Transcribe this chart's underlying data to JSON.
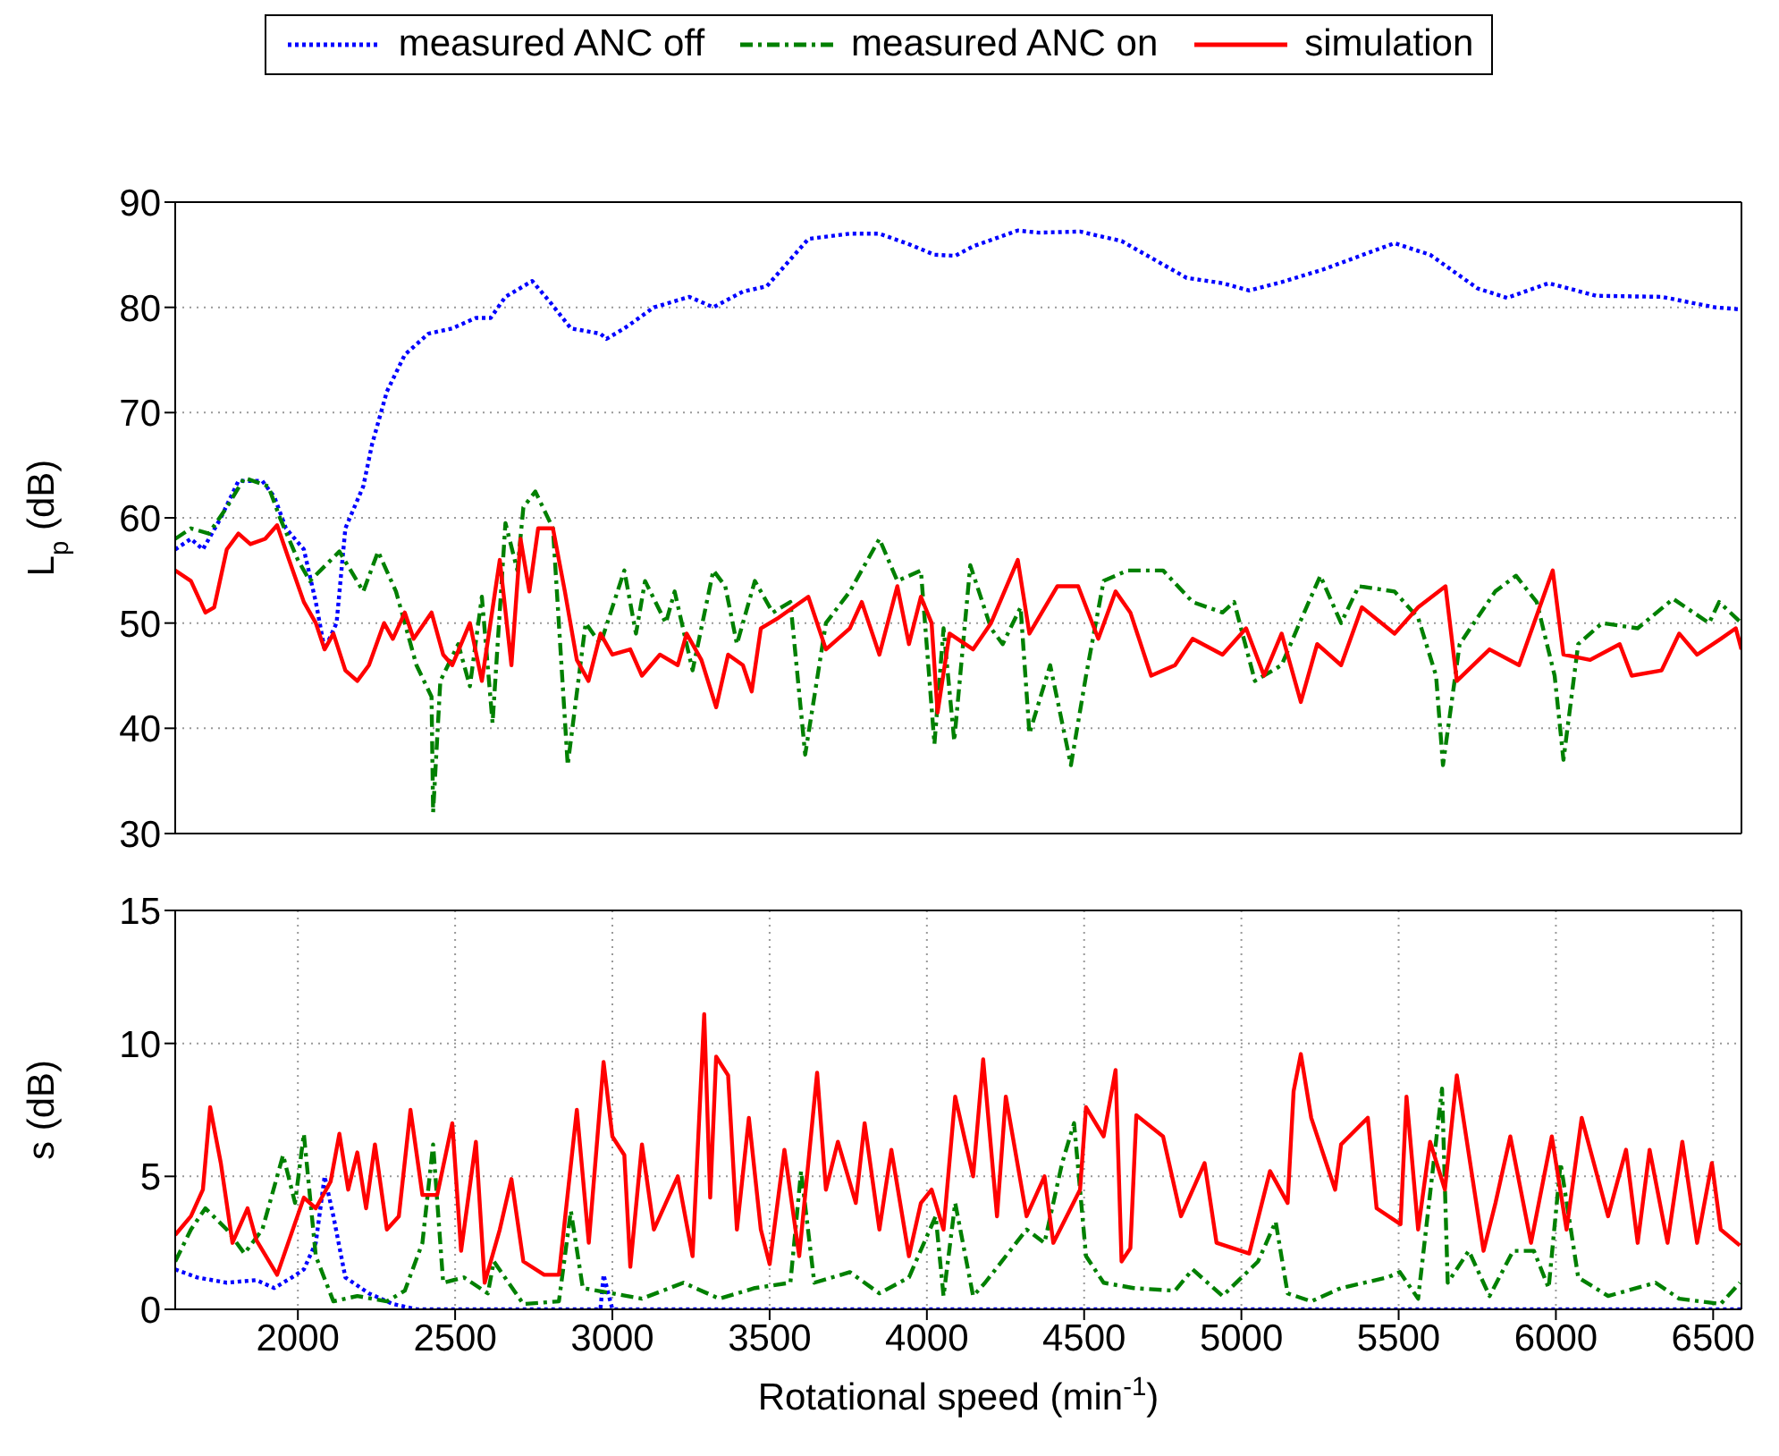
{
  "chart_data": [
    {
      "type": "line",
      "ylabel": "L$_{p}$ (dB)",
      "xlim": [
        1610,
        6590
      ],
      "xticks": [
        2000,
        2500,
        3000,
        3500,
        4000,
        4500,
        5000,
        5500,
        6000,
        6500
      ],
      "ylim": [
        30,
        90
      ],
      "yticks": [
        30,
        40,
        50,
        60,
        70,
        80,
        90
      ],
      "grid": true,
      "legend": "top",
      "tick_labels": "y",
      "series": [
        {
          "name": "measured ANC off",
          "color": "#0000ff",
          "line_style": "dotted",
          "x": [
            1610,
            1660,
            1698,
            1755,
            1811,
            1887,
            1925,
            1962,
            2019,
            2057,
            2085,
            2123,
            2151,
            2208,
            2236,
            2283,
            2340,
            2415,
            2491,
            2566,
            2613,
            2660,
            2745,
            2802,
            2868,
            2962,
            2981,
            3038,
            3132,
            3245,
            3321,
            3415,
            3491,
            3623,
            3755,
            3849,
            3943,
            4024,
            4090,
            4147,
            4289,
            4355,
            4487,
            4619,
            4826,
            4940,
            5025,
            5128,
            5260,
            5487,
            5600,
            5751,
            5845,
            5977,
            6128,
            6336,
            6506,
            6590
          ],
          "values": [
            57,
            58,
            57,
            60,
            63.5,
            63.5,
            62,
            59,
            57,
            52,
            47.5,
            50,
            59,
            63,
            67,
            72,
            75.5,
            77.5,
            78,
            79,
            79,
            81,
            82.5,
            80.5,
            78,
            77.5,
            77,
            78,
            80,
            81,
            80,
            81.5,
            82,
            86.5,
            87,
            87,
            86,
            85,
            84.9,
            85.8,
            87.3,
            87.1,
            87.2,
            86.3,
            82.8,
            82.3,
            81.6,
            82.4,
            83.6,
            86.1,
            85,
            81.8,
            80.9,
            82.3,
            81.1,
            81,
            80,
            79.8
          ]
        },
        {
          "name": "measured ANC on",
          "color": "#008000",
          "line_style": "dashed",
          "x": [
            1610,
            1660,
            1717,
            1774,
            1830,
            1906,
            1943,
            2000,
            2038,
            2132,
            2208,
            2255,
            2312,
            2377,
            2425,
            2430,
            2453,
            2510,
            2547,
            2585,
            2619,
            2660,
            2698,
            2717,
            2755,
            2811,
            2858,
            2915,
            2962,
            3038,
            3075,
            3104,
            3170,
            3198,
            3255,
            3321,
            3359,
            3396,
            3453,
            3510,
            3566,
            3613,
            3679,
            3755,
            3849,
            3906,
            3981,
            4024,
            4053,
            4087,
            4138,
            4204,
            4241,
            4298,
            4326,
            4392,
            4458,
            4506,
            4562,
            4638,
            4751,
            4845,
            4940,
            4977,
            5043,
            5128,
            5185,
            5251,
            5317,
            5373,
            5487,
            5562,
            5619,
            5641,
            5694,
            5807,
            5873,
            5939,
            5996,
            6024,
            6071,
            6147,
            6260,
            6373,
            6487,
            6519,
            6590
          ],
          "values": [
            58,
            59,
            58.5,
            61,
            63.8,
            63,
            60,
            56,
            54,
            56.8,
            53,
            56.8,
            53,
            46,
            43,
            32,
            44.5,
            48,
            44,
            52.5,
            40.5,
            59.5,
            55,
            61,
            62.5,
            59,
            36.5,
            50,
            48,
            55,
            49,
            54,
            50,
            53,
            45.5,
            55,
            53.5,
            48,
            54,
            51,
            52,
            37.5,
            50,
            53,
            58,
            54,
            55,
            38.5,
            49.5,
            38.8,
            55.5,
            49.5,
            48,
            51.5,
            39.5,
            46,
            36.5,
            45,
            54,
            55,
            55,
            52,
            51,
            52,
            44.5,
            46,
            50,
            54.5,
            50,
            53.5,
            53,
            50.5,
            45,
            36.5,
            48,
            53,
            54.5,
            52,
            45,
            37,
            48,
            50,
            49.5,
            52.3,
            50,
            52,
            50
          ]
        },
        {
          "name": "simulation",
          "color": "#ff0000",
          "line_style": "solid",
          "x": [
            1610,
            1660,
            1706,
            1734,
            1774,
            1811,
            1849,
            1896,
            1934,
            1972,
            2019,
            2057,
            2085,
            2113,
            2151,
            2189,
            2226,
            2274,
            2302,
            2340,
            2368,
            2425,
            2462,
            2491,
            2547,
            2585,
            2642,
            2679,
            2708,
            2736,
            2764,
            2811,
            2849,
            2887,
            2924,
            2962,
            3000,
            3057,
            3094,
            3151,
            3208,
            3236,
            3283,
            3330,
            3368,
            3415,
            3443,
            3472,
            3528,
            3623,
            3679,
            3755,
            3793,
            3849,
            3906,
            3943,
            3981,
            4015,
            4034,
            4072,
            4147,
            4204,
            4289,
            4326,
            4415,
            4481,
            4545,
            4600,
            4647,
            4713,
            4789,
            4845,
            4940,
            5015,
            5072,
            5128,
            5189,
            5241,
            5317,
            5383,
            5487,
            5562,
            5649,
            5685,
            5789,
            5883,
            5990,
            6024,
            6109,
            6203,
            6241,
            6336,
            6392,
            6449,
            6524,
            6572,
            6590
          ],
          "values": [
            55,
            54,
            51,
            51.5,
            57,
            58.5,
            57.5,
            58,
            59.3,
            56,
            52,
            50,
            47.5,
            49,
            45.5,
            44.5,
            46,
            50,
            48.5,
            51,
            48.5,
            51,
            47,
            46,
            50,
            44.5,
            56,
            46,
            58,
            53,
            59,
            59,
            53,
            46.5,
            44.5,
            49,
            47,
            47.5,
            45,
            47,
            46,
            49,
            46.5,
            42,
            47,
            46,
            43.5,
            49.5,
            50.5,
            52.5,
            47.5,
            49.5,
            52,
            47,
            53.5,
            48,
            52.5,
            50,
            41.5,
            49,
            47.5,
            50,
            56,
            49,
            53.5,
            53.5,
            48.5,
            53,
            51,
            45,
            46,
            48.5,
            47,
            49.5,
            45,
            49,
            42.5,
            48,
            46,
            51.5,
            49,
            51.5,
            53.5,
            44.5,
            47.5,
            46,
            55,
            47,
            46.5,
            48,
            45,
            45.5,
            49,
            47,
            48.5,
            49.5,
            47.5
          ]
        }
      ]
    },
    {
      "type": "line",
      "xlabel": "Rotational speed (min$^{-1}$)",
      "ylabel": "s (dB)",
      "xlim": [
        1610,
        6590
      ],
      "xticks": [
        2000,
        2500,
        3000,
        3500,
        4000,
        4500,
        5000,
        5500,
        6000,
        6500
      ],
      "ylim": [
        0,
        15
      ],
      "yticks": [
        0,
        5,
        10,
        15
      ],
      "grid": true,
      "series": [
        {
          "color": "#0000ff",
          "line_style": "dotted",
          "x": [
            1610,
            1680,
            1774,
            1868,
            1925,
            1981,
            2019,
            2057,
            2085,
            2113,
            2151,
            2226,
            2302,
            2377,
            2962,
            2972,
            3000,
            4000,
            5000,
            6000,
            6590
          ],
          "values": [
            1.5,
            1.2,
            1,
            1.1,
            0.8,
            1.2,
            1.5,
            2.5,
            5,
            3.5,
            1.2,
            0.6,
            0.2,
            0,
            0,
            1.3,
            0,
            0,
            0,
            0,
            0
          ]
        },
        {
          "color": "#008000",
          "line_style": "dashed",
          "x": [
            1610,
            1660,
            1706,
            1774,
            1830,
            1887,
            1953,
            1991,
            2019,
            2057,
            2113,
            2189,
            2283,
            2340,
            2396,
            2430,
            2462,
            2528,
            2604,
            2623,
            2717,
            2830,
            2868,
            2906,
            3000,
            3094,
            3226,
            3340,
            3453,
            3566,
            3600,
            3642,
            3755,
            3849,
            3943,
            4028,
            4053,
            4090,
            4147,
            4185,
            4317,
            4374,
            4430,
            4468,
            4506,
            4562,
            4657,
            4789,
            4845,
            4940,
            5053,
            5109,
            5147,
            5222,
            5317,
            5464,
            5504,
            5562,
            5638,
            5656,
            5723,
            5789,
            5864,
            5930,
            5977,
            6015,
            6071,
            6166,
            6317,
            6392,
            6524,
            6585
          ],
          "values": [
            1.8,
            3,
            3.8,
            3,
            2.1,
            3,
            5.8,
            4,
            6.6,
            2,
            0.3,
            0.5,
            0.3,
            0.7,
            2.5,
            6.2,
            1,
            1.2,
            0.6,
            1.8,
            0.2,
            0.3,
            3.7,
            0.8,
            0.6,
            0.4,
            1,
            0.4,
            0.8,
            1,
            5.2,
            1,
            1.4,
            0.6,
            1.2,
            3.5,
            0.5,
            4,
            0.5,
            1,
            3,
            2.5,
            5.5,
            7,
            2,
            1,
            0.8,
            0.7,
            1.5,
            0.5,
            1.8,
            3.3,
            0.6,
            0.3,
            0.8,
            1.2,
            1.4,
            0.4,
            8.3,
            1,
            2.2,
            0.5,
            2.2,
            2.2,
            0.8,
            5.5,
            1.2,
            0.5,
            1,
            0.4,
            0.2,
            1
          ]
        },
        {
          "color": "#ff0000",
          "line_style": "solid",
          "x": [
            1610,
            1660,
            1698,
            1721,
            1755,
            1792,
            1840,
            1868,
            1934,
            2019,
            2057,
            2104,
            2132,
            2160,
            2189,
            2217,
            2245,
            2283,
            2321,
            2358,
            2396,
            2443,
            2491,
            2519,
            2566,
            2594,
            2642,
            2679,
            2717,
            2783,
            2830,
            2887,
            2925,
            2972,
            3000,
            3038,
            3057,
            3094,
            3132,
            3208,
            3255,
            3292,
            3311,
            3330,
            3368,
            3396,
            3434,
            3472,
            3500,
            3547,
            3594,
            3651,
            3679,
            3717,
            3774,
            3802,
            3849,
            3887,
            3943,
            3981,
            4015,
            4053,
            4090,
            4147,
            4179,
            4223,
            4251,
            4317,
            4374,
            4402,
            4487,
            4506,
            4562,
            4600,
            4619,
            4647,
            4666,
            4751,
            4808,
            4883,
            4921,
            5025,
            5091,
            5147,
            5166,
            5189,
            5222,
            5298,
            5317,
            5402,
            5430,
            5506,
            5525,
            5562,
            5600,
            5647,
            5685,
            5770,
            5808,
            5855,
            5921,
            5987,
            6034,
            6082,
            6166,
            6223,
            6260,
            6298,
            6355,
            6402,
            6449,
            6496,
            6524,
            6585
          ],
          "values": [
            2.8,
            3.5,
            4.5,
            7.6,
            5.5,
            2.5,
            3.8,
            2.6,
            1.3,
            4.2,
            3.8,
            4.8,
            6.6,
            4.5,
            5.9,
            3.8,
            6.2,
            3,
            3.5,
            7.5,
            4.3,
            4.3,
            7,
            2.2,
            6.3,
            1,
            3,
            4.9,
            1.8,
            1.3,
            1.3,
            7.5,
            2.5,
            9.3,
            6.5,
            5.8,
            1.6,
            6.2,
            3,
            5,
            2,
            11.1,
            4.2,
            9.5,
            8.8,
            3,
            7.2,
            3,
            1.7,
            6,
            2,
            8.9,
            4.5,
            6.3,
            4,
            7,
            3,
            6,
            2,
            4,
            4.5,
            3,
            8,
            5,
            9.4,
            3.5,
            8,
            3.5,
            5,
            2.5,
            4.5,
            7.6,
            6.5,
            9,
            1.8,
            2.3,
            7.3,
            6.5,
            3.5,
            5.5,
            2.5,
            2.1,
            5.2,
            4,
            8.2,
            9.6,
            7.2,
            4.5,
            6.2,
            7.2,
            3.8,
            3.2,
            8,
            3,
            6.3,
            4.5,
            8.8,
            2.2,
            4,
            6.5,
            2.5,
            6.5,
            3,
            7.2,
            3.5,
            6,
            2.5,
            6,
            2.5,
            6.3,
            2.5,
            5.5,
            3,
            2.4
          ]
        }
      ]
    }
  ]
}
